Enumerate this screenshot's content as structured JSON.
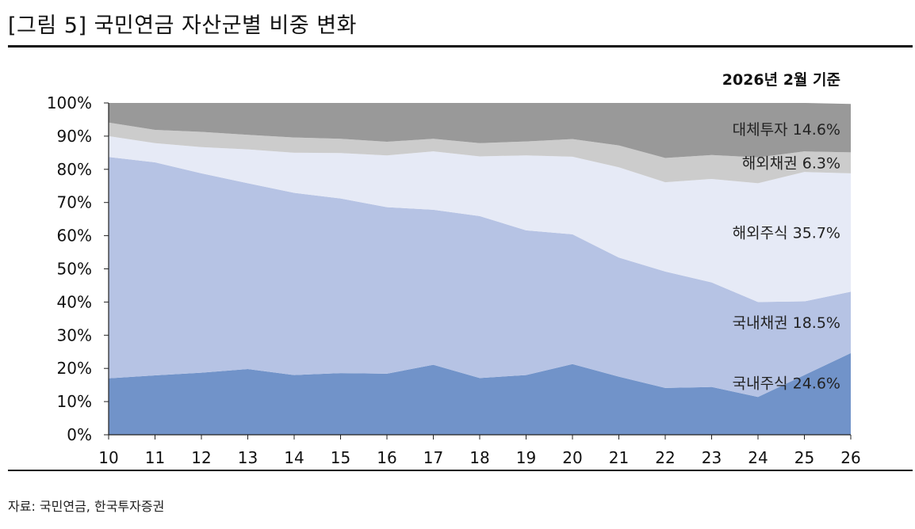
{
  "header": {
    "title": "[그림 5] 국민연금 자산군별 비중 변화",
    "as_of": "2026년 2월 기준"
  },
  "footer": {
    "source": "자료: 국민연금, 한국투자증권"
  },
  "chart_data": {
    "type": "area",
    "stacked": true,
    "categories": [
      "10",
      "11",
      "12",
      "13",
      "14",
      "15",
      "16",
      "17",
      "18",
      "19",
      "20",
      "21",
      "22",
      "23",
      "24",
      "25",
      "26"
    ],
    "ylim": [
      0,
      100
    ],
    "yticks": [
      "0%",
      "10%",
      "20%",
      "30%",
      "40%",
      "50%",
      "60%",
      "70%",
      "80%",
      "90%",
      "100%"
    ],
    "grid": false,
    "series": [
      {
        "name": "국내주식",
        "label": "국내주식 24.6%",
        "color": "#7193c9",
        "values": [
          17.0,
          17.9,
          18.7,
          19.8,
          18.0,
          18.6,
          18.4,
          21.1,
          17.1,
          18.0,
          21.3,
          17.5,
          14.1,
          14.4,
          11.4,
          18.0,
          24.6
        ]
      },
      {
        "name": "국내채권",
        "label": "국내채권 18.5%",
        "color": "#b6c3e4",
        "values": [
          66.7,
          64.2,
          60.1,
          56.0,
          54.9,
          52.6,
          50.2,
          46.7,
          48.8,
          43.6,
          39.1,
          35.9,
          35.1,
          31.5,
          28.6,
          22.2,
          18.5
        ]
      },
      {
        "name": "해외주식",
        "label": "해외주식 35.7%",
        "color": "#e6eaf6",
        "values": [
          6.3,
          5.8,
          7.9,
          10.2,
          12.1,
          13.7,
          15.6,
          17.6,
          18.0,
          22.6,
          23.4,
          27.2,
          26.9,
          31.2,
          35.8,
          39.0,
          35.7
        ]
      },
      {
        "name": "해외채권",
        "label": "해외채권 6.3%",
        "color": "#cccccc",
        "values": [
          4.1,
          4.0,
          4.6,
          4.4,
          4.6,
          4.3,
          4.1,
          3.8,
          4.0,
          4.2,
          5.3,
          6.6,
          7.3,
          7.2,
          7.8,
          6.2,
          6.3
        ]
      },
      {
        "name": "대체투자",
        "label": "대체투자 14.6%",
        "color": "#999999",
        "values": [
          5.9,
          8.1,
          8.7,
          9.6,
          10.4,
          10.8,
          11.7,
          10.8,
          12.1,
          11.6,
          10.9,
          12.8,
          16.6,
          15.7,
          16.4,
          14.6,
          14.6
        ]
      }
    ]
  }
}
